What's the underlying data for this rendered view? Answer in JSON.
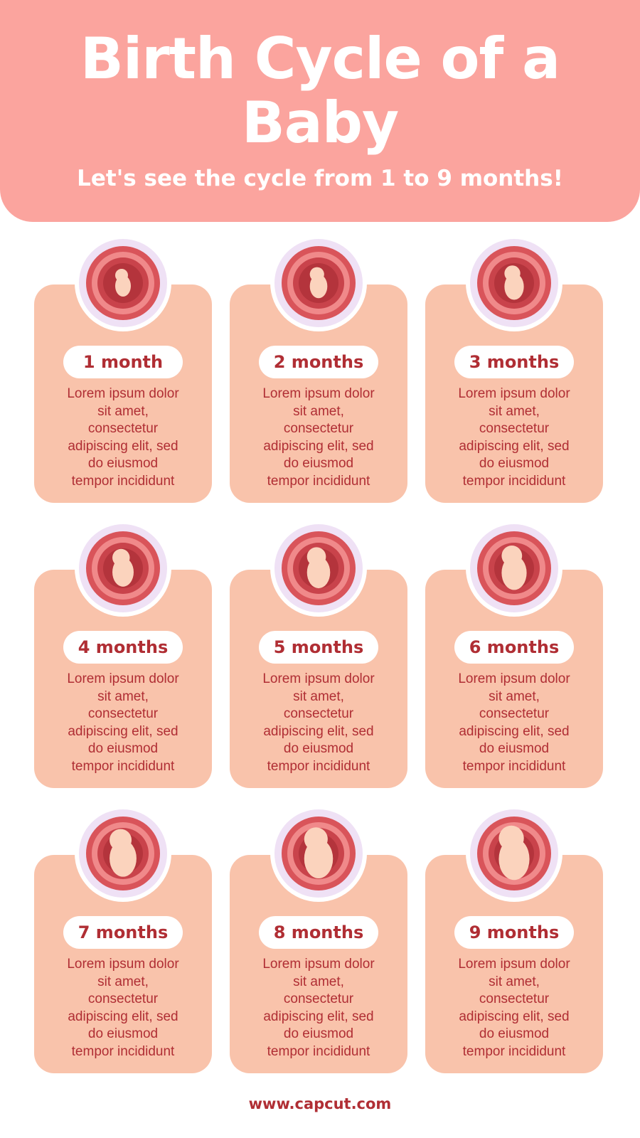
{
  "header": {
    "title": "Birth Cycle of a Baby",
    "subtitle": "Let's see the cycle from 1 to 9 months!"
  },
  "colors": {
    "header": "#fba49e",
    "card": "#f9c3ab",
    "text": "#b02e34",
    "ring": "#efe1f5"
  },
  "stages": [
    {
      "label": "1 month",
      "text": "Lorem ipsum dolor\nsit amet,\nconsectetur\nadipiscing elit, sed\ndo eiusmod\ntempor incididunt",
      "icon": "embryo-icon"
    },
    {
      "label": "2 months",
      "text": "Lorem ipsum dolor\nsit amet,\nconsectetur\nadipiscing elit, sed\ndo eiusmod\ntempor incididunt",
      "icon": "embryo-icon"
    },
    {
      "label": "3 months",
      "text": "Lorem ipsum dolor\nsit amet,\nconsectetur\nadipiscing elit, sed\ndo eiusmod\ntempor incididunt",
      "icon": "fetus-icon"
    },
    {
      "label": "4 months",
      "text": "Lorem ipsum dolor\nsit amet,\nconsectetur\nadipiscing elit, sed\ndo eiusmod\ntempor incididunt",
      "icon": "fetus-icon"
    },
    {
      "label": "5 months",
      "text": "Lorem ipsum dolor\nsit amet,\nconsectetur\nadipiscing elit, sed\ndo eiusmod\ntempor incididunt",
      "icon": "fetus-icon"
    },
    {
      "label": "6 months",
      "text": "Lorem ipsum dolor\nsit amet,\nconsectetur\nadipiscing elit, sed\ndo eiusmod\ntempor incididunt",
      "icon": "fetus-icon"
    },
    {
      "label": "7 months",
      "text": "Lorem ipsum dolor\nsit amet,\nconsectetur\nadipiscing elit, sed\ndo eiusmod\ntempor incididunt",
      "icon": "fetus-icon"
    },
    {
      "label": "8 months",
      "text": "Lorem ipsum dolor\nsit amet,\nconsectetur\nadipiscing elit, sed\ndo eiusmod\ntempor incididunt",
      "icon": "fetus-icon"
    },
    {
      "label": "9 months",
      "text": "Lorem ipsum dolor\nsit amet,\nconsectetur\nadipiscing elit, sed\ndo eiusmod\ntempor incididunt",
      "icon": "fetus-icon"
    }
  ],
  "footer": {
    "url": "www.capcut.com"
  }
}
